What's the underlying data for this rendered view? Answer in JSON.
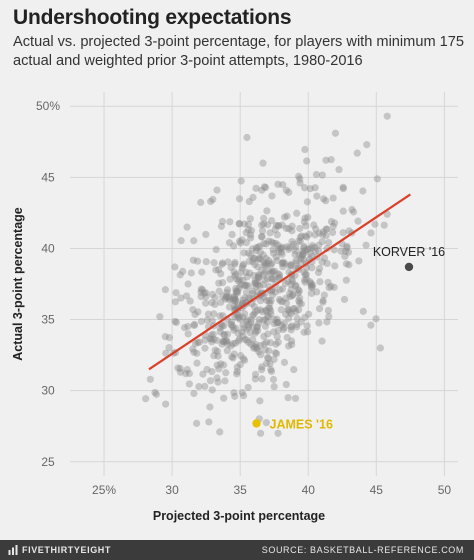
{
  "header": {
    "title": "Undershooting expectations",
    "subtitle": "Actual vs. projected 3-point percentage, for players with minimum 175 actual and weighted prior 3-point attempts, 1980-2016"
  },
  "footer": {
    "brand": "FIVETHIRTYEIGHT",
    "source": "SOURCE: BASKETBALL-REFERENCE.COM"
  },
  "chart_data": {
    "type": "scatter",
    "xlabel": "Projected 3-point percentage",
    "ylabel": "Actual 3-point percentage",
    "xlim": [
      22.5,
      51
    ],
    "ylim": [
      24,
      51
    ],
    "x_ticks": [
      25,
      30,
      35,
      40,
      45,
      50
    ],
    "x_tick_labels": [
      "25%",
      "30",
      "35",
      "40",
      "45",
      "50"
    ],
    "y_ticks": [
      25,
      30,
      35,
      40,
      45,
      50
    ],
    "y_tick_labels": [
      "25",
      "30",
      "35",
      "40",
      "45",
      "50%"
    ],
    "grid": true,
    "cloud": {
      "approx_count": 700,
      "center": [
        36.8,
        37.0
      ],
      "sd_x": 3.2,
      "sd_y": 3.5,
      "correlation": 0.45,
      "x_range": [
        28,
        46.5
      ],
      "y_range": [
        27,
        49.5
      ],
      "color": "#8a8a8a"
    },
    "regression_line": {
      "x": [
        28.3,
        47.5
      ],
      "y": [
        31.5,
        43.8
      ],
      "color": "#d9412b"
    },
    "highlighted_points": [
      {
        "label": "KORVER '16",
        "x": 47.4,
        "y": 38.7,
        "color": "#4a4a4a",
        "label_color": "#222222"
      },
      {
        "label": "JAMES '16",
        "x": 36.2,
        "y": 27.7,
        "color": "#e8c200",
        "label_color": "#e0b800"
      }
    ],
    "scatter_points": [
      [
        45.8,
        49.3
      ],
      [
        44.3,
        47.3
      ],
      [
        42.0,
        48.1
      ],
      [
        35.5,
        47.8
      ],
      [
        28.4,
        30.8
      ],
      [
        29.1,
        35.2
      ],
      [
        29.5,
        33.8
      ],
      [
        30.2,
        38.7
      ],
      [
        31.8,
        27.7
      ],
      [
        32.7,
        27.8
      ],
      [
        33.5,
        27.1
      ],
      [
        36.5,
        27.0
      ],
      [
        31.0,
        31.2
      ],
      [
        31.6,
        29.8
      ],
      [
        32.4,
        30.3
      ],
      [
        33.3,
        30.9
      ],
      [
        34.6,
        29.6
      ],
      [
        45.3,
        33.0
      ],
      [
        44.6,
        34.6
      ],
      [
        45.8,
        42.4
      ],
      [
        44.9,
        41.7
      ],
      [
        43.6,
        46.7
      ],
      [
        41.3,
        46.2
      ],
      [
        40.6,
        45.2
      ],
      [
        39.4,
        44.6
      ],
      [
        33.3,
        44.1
      ],
      [
        33.7,
        41.9
      ],
      [
        31.1,
        41.5
      ]
    ]
  }
}
